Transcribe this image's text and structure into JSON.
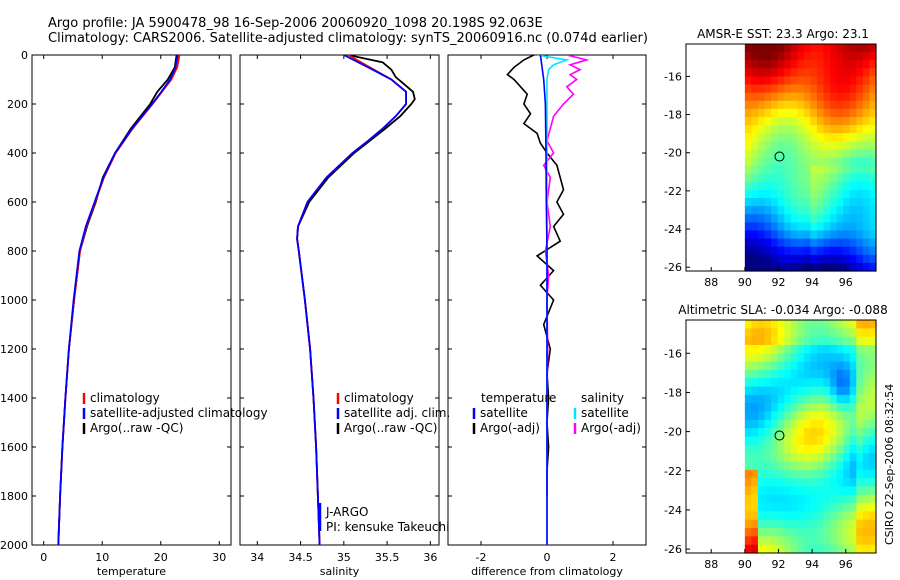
{
  "figure": {
    "title_line1": "Argo profile: JA 5900478_98 16-Sep-2006 20060920_1098 20.198S 92.063E",
    "title_line2": "Climatology: CARS2006. Satellite-adjusted climatology: synTS_20060916.nc (0.074d earlier)",
    "side_label": "CSIRO 22-Sep-2006 08:32:54"
  },
  "colors": {
    "climatology": "#ff0000",
    "satellite": "#0000ff",
    "argo": "#000000",
    "salinity_satellite": "#00e5ff",
    "salinity_argo": "#ff00ff",
    "marker": "#000000"
  },
  "chart_data": [
    {
      "type": "line",
      "name": "temperature-profile",
      "xlabel": "temperature",
      "ylabel": "",
      "xlim": [
        -2,
        32
      ],
      "ylim": [
        2000,
        0
      ],
      "xticks": [
        0,
        10,
        20,
        30
      ],
      "yticks": [
        0,
        200,
        400,
        600,
        800,
        1000,
        1200,
        1400,
        1600,
        1800,
        2000
      ],
      "legend": [
        "climatology",
        "satellite-adjusted climatology",
        "Argo(..raw -QC)"
      ],
      "series": [
        {
          "name": "climatology",
          "color_key": "climatology",
          "depth": [
            0,
            50,
            100,
            150,
            200,
            300,
            400,
            500,
            600,
            700,
            800,
            1000,
            1200,
            1400,
            1600,
            1800,
            2000
          ],
          "values": [
            23.2,
            22.8,
            21.8,
            20.2,
            18.6,
            15.2,
            12.3,
            10.3,
            8.8,
            7.3,
            6.2,
            5.2,
            4.3,
            3.7,
            3.2,
            2.8,
            2.5
          ]
        },
        {
          "name": "satellite-adjusted climatology",
          "color_key": "satellite",
          "depth": [
            0,
            50,
            100,
            150,
            200,
            300,
            400,
            500,
            600,
            700,
            800,
            1000,
            1200,
            1400,
            1600,
            1800,
            2000
          ],
          "values": [
            22.9,
            22.5,
            21.6,
            20.1,
            18.5,
            15.1,
            12.2,
            10.2,
            8.7,
            7.2,
            6.1,
            5.1,
            4.3,
            3.7,
            3.2,
            2.8,
            2.5
          ]
        },
        {
          "name": "Argo(..raw -QC)",
          "color_key": "argo",
          "depth": [
            0,
            50,
            100,
            150,
            200,
            300,
            400,
            500,
            600,
            700,
            800,
            1000,
            1200,
            1400,
            1600,
            1800,
            2000
          ],
          "values": [
            22.7,
            22.4,
            21.2,
            19.4,
            18.2,
            14.9,
            12.2,
            10.1,
            8.9,
            7.4,
            6.2,
            5.2,
            4.3,
            3.7,
            3.2,
            2.8,
            2.5
          ]
        }
      ]
    },
    {
      "type": "line",
      "name": "salinity-profile",
      "xlabel": "salinity",
      "ylabel": "",
      "xlim": [
        33.8,
        36.1
      ],
      "ylim": [
        2000,
        0
      ],
      "xticks": [
        34,
        34.5,
        35,
        35.5,
        36
      ],
      "legend": [
        "climatology",
        "satellite adj. clim.",
        "Argo(..raw -QC)"
      ],
      "annotations": [
        "J-ARGO",
        "PI: kensuke Takeuchi"
      ],
      "series": [
        {
          "name": "climatology",
          "color_key": "climatology",
          "depth": [
            0,
            50,
            100,
            150,
            200,
            250,
            300,
            350,
            400,
            500,
            600,
            700,
            750,
            800,
            1000,
            1200,
            1400,
            1600,
            1800,
            2000
          ],
          "values": [
            35.05,
            35.3,
            35.55,
            35.72,
            35.72,
            35.6,
            35.45,
            35.28,
            35.1,
            34.8,
            34.58,
            34.47,
            34.46,
            34.48,
            34.55,
            34.61,
            34.65,
            34.68,
            34.7,
            34.72
          ]
        },
        {
          "name": "satellite adj. clim.",
          "color_key": "satellite",
          "depth": [
            0,
            50,
            100,
            150,
            200,
            250,
            300,
            350,
            400,
            500,
            600,
            700,
            750,
            800,
            1000,
            1200,
            1400,
            1600,
            1800,
            2000
          ],
          "values": [
            35.0,
            35.28,
            35.55,
            35.72,
            35.72,
            35.6,
            35.45,
            35.28,
            35.1,
            34.8,
            34.58,
            34.47,
            34.46,
            34.48,
            34.55,
            34.61,
            34.65,
            34.68,
            34.7,
            34.72
          ]
        },
        {
          "name": "Argo(..raw -QC)",
          "color_key": "argo",
          "depth": [
            0,
            30,
            60,
            90,
            120,
            150,
            180,
            200,
            250,
            300,
            350,
            400,
            500,
            600,
            700,
            750,
            800,
            1000,
            1200,
            1400,
            1600,
            1800,
            2000
          ],
          "values": [
            35.05,
            35.45,
            35.55,
            35.6,
            35.7,
            35.8,
            35.82,
            35.78,
            35.65,
            35.48,
            35.3,
            35.12,
            34.82,
            34.6,
            34.47,
            34.46,
            34.48,
            34.55,
            34.61,
            34.65,
            34.68,
            34.7,
            34.72
          ]
        }
      ]
    },
    {
      "type": "line",
      "name": "difference-profile",
      "xlabel": "difference from climatology",
      "ylabel": "",
      "xlim": [
        -3,
        3
      ],
      "ylim": [
        2000,
        0
      ],
      "xticks": [
        -2,
        0,
        2
      ],
      "legend_left": [
        "temperature",
        "satellite",
        "Argo(-adj)"
      ],
      "legend_right": [
        "salinity",
        "satellite",
        "Argo(-adj)"
      ],
      "series": [
        {
          "name": "temperature satellite",
          "color_key": "satellite",
          "depth": [
            0,
            100,
            200,
            400,
            600,
            800,
            1000,
            1200,
            1400,
            1600,
            1800,
            2000
          ],
          "values": [
            -0.2,
            -0.1,
            -0.05,
            -0.03,
            -0.02,
            0.0,
            0.0,
            0.0,
            0.0,
            0.0,
            0.0,
            0.0
          ]
        },
        {
          "name": "temperature Argo(-adj)",
          "color_key": "argo",
          "depth": [
            0,
            20,
            50,
            80,
            100,
            130,
            160,
            200,
            240,
            280,
            320,
            360,
            400,
            450,
            500,
            550,
            600,
            650,
            700,
            760,
            820,
            880,
            940,
            1000,
            1100,
            1200,
            1300,
            1400,
            1500,
            1600,
            1700,
            1800
          ],
          "values": [
            -0.4,
            -0.7,
            -1.0,
            -1.2,
            -1.0,
            -0.8,
            -0.6,
            -0.7,
            -0.5,
            -0.7,
            -0.3,
            -0.2,
            0.0,
            0.3,
            0.4,
            0.5,
            0.3,
            0.5,
            0.2,
            0.4,
            -0.3,
            0.2,
            -0.2,
            0.2,
            -0.1,
            0.1,
            0.0,
            0.05,
            0.0,
            0.05,
            0.0,
            0.0
          ]
        },
        {
          "name": "salinity satellite",
          "color_key": "salinity_satellite",
          "depth": [
            0,
            20,
            40,
            60,
            100,
            200,
            400,
            800,
            1200,
            1600,
            2000
          ],
          "values": [
            -0.3,
            0.6,
            0.2,
            0.05,
            0.0,
            0.0,
            0.0,
            0.0,
            0.0,
            0.0,
            0.0
          ]
        },
        {
          "name": "salinity Argo(-adj)",
          "color_key": "salinity_argo",
          "depth": [
            0,
            20,
            40,
            60,
            80,
            100,
            130,
            160,
            200,
            250,
            300,
            350,
            400,
            450,
            500,
            600,
            700,
            800,
            900,
            1000,
            1200,
            1400
          ],
          "values": [
            0.6,
            1.2,
            0.7,
            1.0,
            0.7,
            0.9,
            0.6,
            0.8,
            0.5,
            0.2,
            0.1,
            0.0,
            0.2,
            -0.1,
            0.1,
            0.0,
            0.1,
            -0.05,
            0.05,
            0.0,
            0.02,
            0.0
          ]
        }
      ]
    },
    {
      "type": "heatmap",
      "name": "sst-map",
      "title": "AMSR-E SST: 23.3 Argo: 23.1",
      "xlim": [
        86.5,
        97.8
      ],
      "ylim": [
        -26.2,
        -14.3
      ],
      "xticks": [
        88,
        90,
        92,
        94,
        96
      ],
      "yticks": [
        -16,
        -18,
        -20,
        -22,
        -24,
        -26
      ],
      "data_lon_range": [
        90,
        97.8
      ],
      "data_lat_range": [
        -26.2,
        -14.3
      ],
      "marker": {
        "lon": 92.06,
        "lat": -20.2
      }
    },
    {
      "type": "heatmap",
      "name": "sla-map",
      "title": "Altimetric SLA: -0.034 Argo: -0.088",
      "xlim": [
        86.5,
        97.8
      ],
      "ylim": [
        -26.2,
        -14.3
      ],
      "xticks": [
        88,
        90,
        92,
        94,
        96
      ],
      "yticks": [
        -16,
        -18,
        -20,
        -22,
        -24,
        -26
      ],
      "data_lon_range": [
        90,
        97.8
      ],
      "data_lat_range": [
        -26.2,
        -14.3
      ],
      "marker": {
        "lon": 92.06,
        "lat": -20.2
      }
    }
  ]
}
